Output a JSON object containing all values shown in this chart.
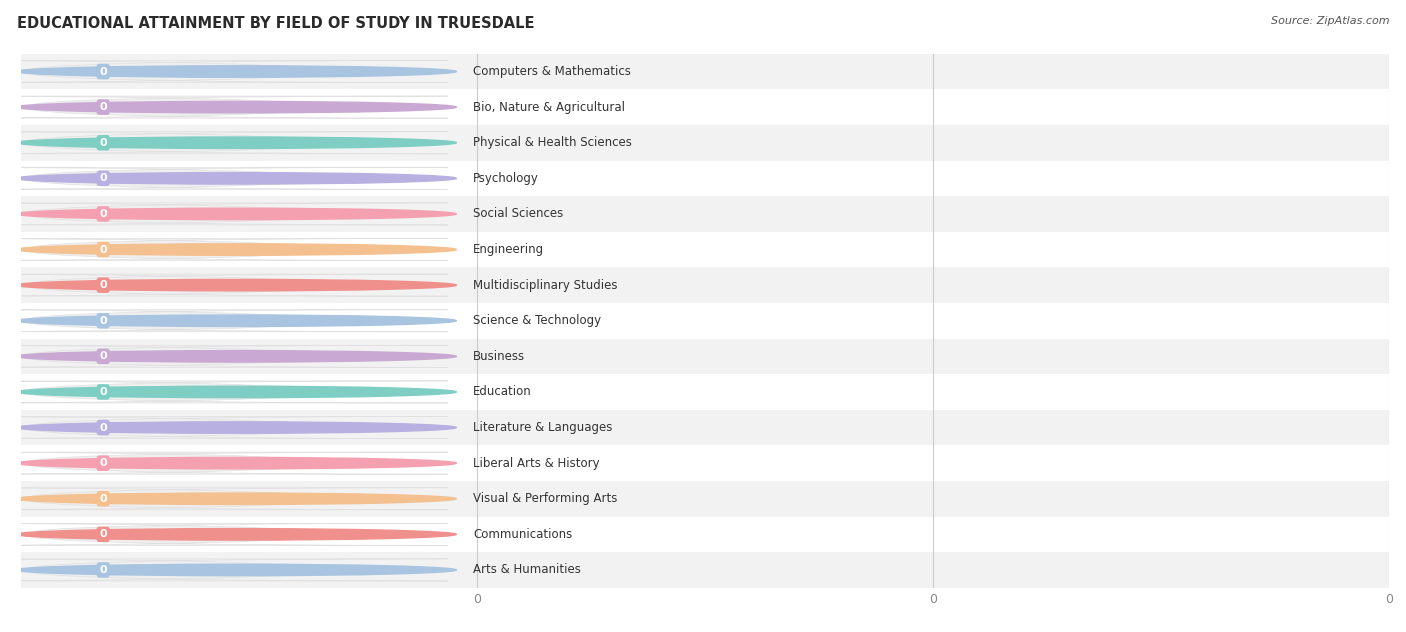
{
  "title": "EDUCATIONAL ATTAINMENT BY FIELD OF STUDY IN TRUESDALE",
  "source": "Source: ZipAtlas.com",
  "categories": [
    "Computers & Mathematics",
    "Bio, Nature & Agricultural",
    "Physical & Health Sciences",
    "Psychology",
    "Social Sciences",
    "Engineering",
    "Multidisciplinary Studies",
    "Science & Technology",
    "Business",
    "Education",
    "Literature & Languages",
    "Liberal Arts & History",
    "Visual & Performing Arts",
    "Communications",
    "Arts & Humanities"
  ],
  "values": [
    0,
    0,
    0,
    0,
    0,
    0,
    0,
    0,
    0,
    0,
    0,
    0,
    0,
    0,
    0
  ],
  "bar_colors": [
    "#a8c4e0",
    "#c9a8d4",
    "#7ecec4",
    "#b8b0e0",
    "#f4a0b0",
    "#f4c090",
    "#f0908c",
    "#a8c4e0",
    "#c9a8d4",
    "#7ecec4",
    "#b8b0e0",
    "#f4a0b0",
    "#f4c090",
    "#f0908c",
    "#a8c4e0"
  ],
  "background_color": "#ffffff",
  "row_bg_even": "#f2f2f2",
  "row_bg_odd": "#ffffff",
  "xlim_max": 1.0,
  "n_gridlines": 3,
  "title_fontsize": 10.5,
  "bar_label_fontsize": 8.5,
  "value_fontsize": 8,
  "source_fontsize": 8
}
